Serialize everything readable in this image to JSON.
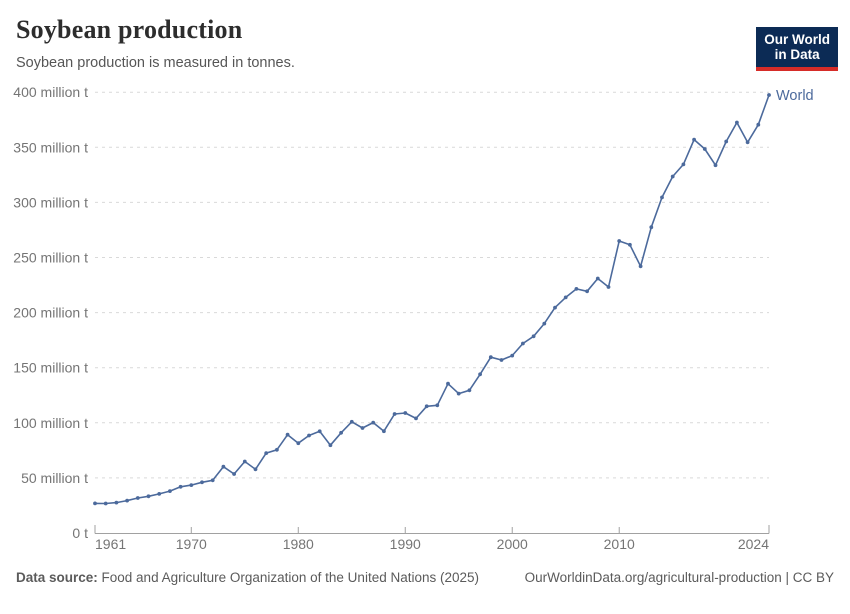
{
  "header": {
    "title": "Soybean production",
    "subtitle": "Soybean production is measured in tonnes.",
    "logo": {
      "line1": "Our World",
      "line2": "in Data",
      "bg_color": "#0c2b55",
      "accent_color": "#d62c28"
    }
  },
  "chart_data": {
    "type": "line",
    "title": "Soybean production",
    "ylabel": "",
    "xlabel": "",
    "unit": "tonnes",
    "xlim": [
      1961,
      2024
    ],
    "ylim": [
      0,
      400
    ],
    "grid": "horizontal-dashed",
    "legend_position": "end-of-line-label",
    "line_color": "#4c6a9c",
    "grid_color": "#d9d9d9",
    "axis_color": "#a1a1a1",
    "tick_color": "#757575",
    "end_label": "World",
    "x_ticks": [
      {
        "year": 1961,
        "label": "1961"
      },
      {
        "year": 1970,
        "label": "1970"
      },
      {
        "year": 1980,
        "label": "1980"
      },
      {
        "year": 1990,
        "label": "1990"
      },
      {
        "year": 2000,
        "label": "2000"
      },
      {
        "year": 2010,
        "label": "2010"
      },
      {
        "year": 2024,
        "label": "2024"
      }
    ],
    "y_ticks": [
      {
        "value": 0,
        "label": "0 t"
      },
      {
        "value": 50,
        "label": "50 million t"
      },
      {
        "value": 100,
        "label": "100 million t"
      },
      {
        "value": 150,
        "label": "150 million t"
      },
      {
        "value": 200,
        "label": "200 million t"
      },
      {
        "value": 250,
        "label": "250 million t"
      },
      {
        "value": 300,
        "label": "300 million t"
      },
      {
        "value": 350,
        "label": "350 million t"
      },
      {
        "value": 400,
        "label": "400 million t"
      }
    ],
    "x": [
      1961,
      1962,
      1963,
      1964,
      1965,
      1966,
      1967,
      1968,
      1969,
      1970,
      1971,
      1972,
      1973,
      1974,
      1975,
      1976,
      1977,
      1978,
      1979,
      1980,
      1981,
      1982,
      1983,
      1984,
      1985,
      1986,
      1987,
      1988,
      1989,
      1990,
      1991,
      1992,
      1993,
      1994,
      1995,
      1996,
      1997,
      1998,
      1999,
      2000,
      2001,
      2002,
      2003,
      2004,
      2005,
      2006,
      2007,
      2008,
      2009,
      2010,
      2011,
      2012,
      2013,
      2014,
      2015,
      2016,
      2017,
      2018,
      2019,
      2020,
      2021,
      2022,
      2023,
      2024
    ],
    "series": [
      {
        "name": "World",
        "color": "#4c6a9c",
        "unit": "million tonnes",
        "values": [
          26.9,
          26.8,
          27.6,
          29.4,
          31.8,
          33.3,
          35.5,
          38.0,
          41.9,
          43.5,
          46.0,
          47.8,
          60.2,
          53.5,
          64.9,
          57.8,
          72.5,
          75.5,
          89.2,
          81.5,
          88.5,
          92.3,
          79.7,
          90.9,
          100.9,
          95.3,
          100.2,
          92.4,
          108.0,
          108.9,
          104.0,
          115.0,
          115.9,
          135.5,
          126.5,
          129.5,
          144.0,
          159.5,
          157.0,
          161.0,
          172.0,
          178.5,
          190.0,
          204.5,
          213.8,
          221.5,
          219.3,
          230.9,
          223.2,
          265.0,
          261.5,
          242.0,
          277.5,
          304.5,
          323.5,
          334.5,
          357.0,
          348.5,
          333.8,
          355.3,
          372.5,
          354.5,
          370.5,
          397.5
        ]
      }
    ]
  },
  "footer": {
    "source_prefix": "Data source:",
    "source_text": " Food and Agriculture Organization of the United Nations (2025)",
    "link_text": "OurWorldinData.org/agricultural-production | CC BY"
  }
}
